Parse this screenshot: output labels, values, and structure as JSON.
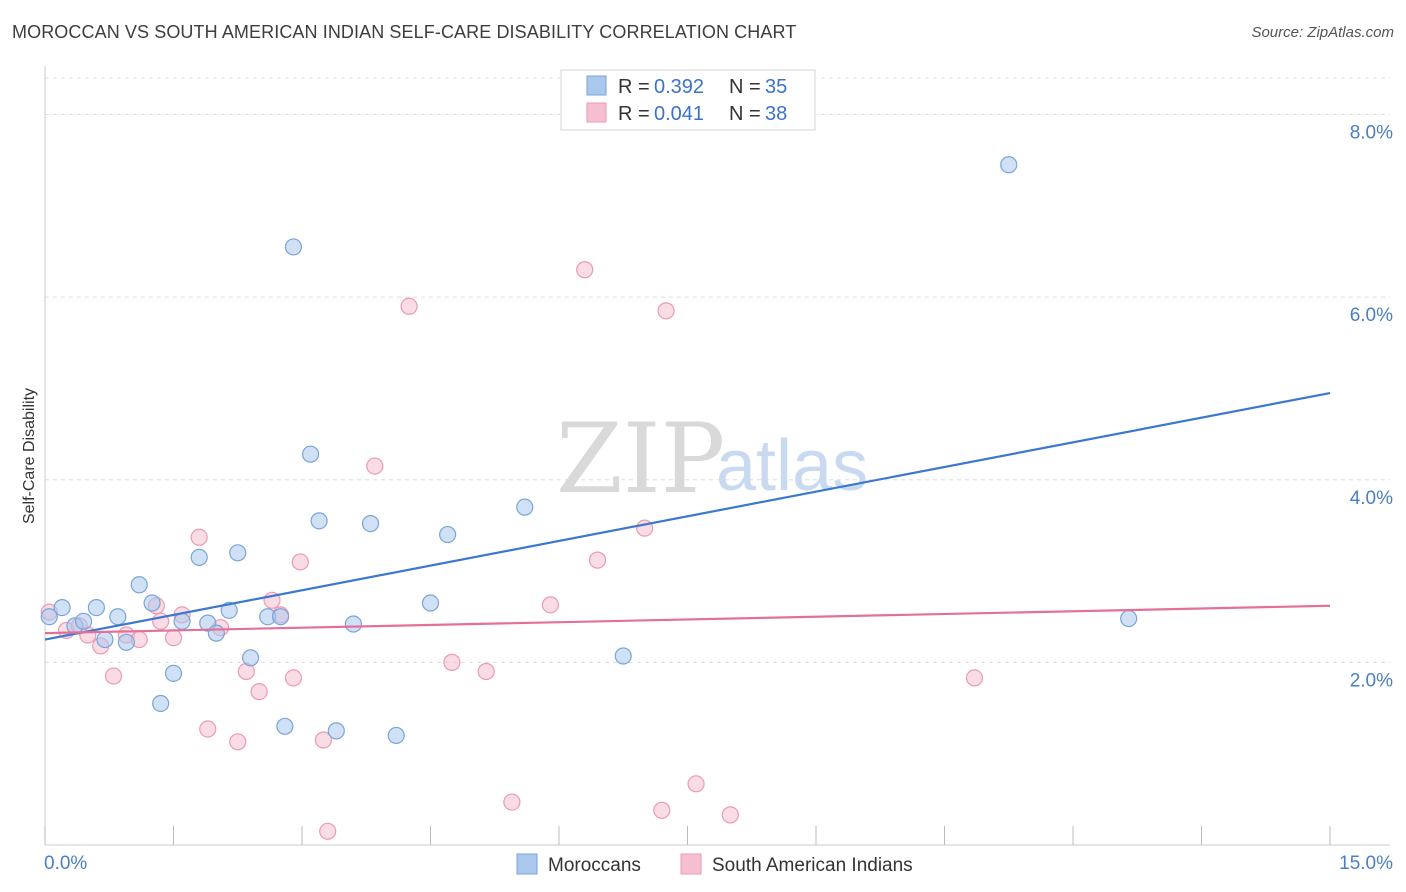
{
  "header": {
    "title": "MOROCCAN VS SOUTH AMERICAN INDIAN SELF-CARE DISABILITY CORRELATION CHART",
    "source": "Source: ZipAtlas.com"
  },
  "watermark": {
    "zip": "ZIP",
    "atlas": "atlas"
  },
  "colors": {
    "blue_fill": "#aac8ee",
    "blue_stroke": "#7aa4d8",
    "blue_line": "#3b78d0",
    "pink_fill": "#f6bfd0",
    "pink_stroke": "#eb9ab5",
    "pink_line": "#e4709a",
    "grid": "#dddddd",
    "axis_text": "#4a7fc4"
  },
  "chart_data": {
    "type": "scatter",
    "title": "MOROCCAN VS SOUTH AMERICAN INDIAN SELF-CARE DISABILITY CORRELATION CHART",
    "xlabel": "",
    "ylabel": "Self-Care Disability",
    "xlim": [
      0,
      15
    ],
    "ylim": [
      0,
      8.4
    ],
    "x_tick_labels": [
      "0.0%",
      "15.0%"
    ],
    "y_ticks": [
      2,
      4,
      6,
      8
    ],
    "y_tick_labels": [
      "2.0%",
      "4.0%",
      "6.0%",
      "8.0%"
    ],
    "grid": true,
    "legend": {
      "position": "top-center",
      "entries": [
        {
          "r_label": "R = ",
          "r_value": "0.392",
          "n_label": "N = ",
          "n_value": "35"
        },
        {
          "r_label": "R = ",
          "r_value": "0.041",
          "n_label": "N = ",
          "n_value": "38"
        }
      ]
    },
    "series": [
      {
        "name": "Moroccans",
        "color": "blue",
        "trend": [
          [
            0,
            2.25
          ],
          [
            15,
            4.95
          ]
        ],
        "points": [
          [
            0.05,
            2.5
          ],
          [
            0.2,
            2.6
          ],
          [
            0.35,
            2.4
          ],
          [
            0.45,
            2.45
          ],
          [
            0.6,
            2.6
          ],
          [
            0.7,
            2.25
          ],
          [
            0.85,
            2.5
          ],
          [
            0.95,
            2.22
          ],
          [
            1.1,
            2.85
          ],
          [
            1.25,
            2.65
          ],
          [
            1.5,
            1.88
          ],
          [
            1.35,
            1.55
          ],
          [
            1.6,
            2.45
          ],
          [
            1.8,
            3.15
          ],
          [
            1.9,
            2.43
          ],
          [
            2.0,
            2.32
          ],
          [
            2.15,
            2.57
          ],
          [
            2.25,
            3.2
          ],
          [
            2.4,
            2.05
          ],
          [
            2.6,
            2.5
          ],
          [
            2.75,
            2.5
          ],
          [
            2.8,
            1.3
          ],
          [
            2.9,
            6.55
          ],
          [
            3.1,
            4.28
          ],
          [
            3.2,
            3.55
          ],
          [
            3.4,
            1.25
          ],
          [
            3.6,
            2.42
          ],
          [
            3.8,
            3.52
          ],
          [
            4.1,
            1.2
          ],
          [
            4.5,
            2.65
          ],
          [
            4.7,
            3.4
          ],
          [
            5.6,
            3.7
          ],
          [
            6.75,
            2.07
          ],
          [
            11.25,
            7.45
          ],
          [
            12.65,
            2.48
          ]
        ]
      },
      {
        "name": "South American Indians",
        "color": "pink",
        "trend": [
          [
            0,
            2.32
          ],
          [
            15,
            2.62
          ]
        ],
        "points": [
          [
            0.05,
            2.55
          ],
          [
            0.25,
            2.35
          ],
          [
            0.4,
            2.4
          ],
          [
            0.5,
            2.3
          ],
          [
            0.65,
            2.18
          ],
          [
            0.8,
            1.85
          ],
          [
            0.95,
            2.3
          ],
          [
            1.1,
            2.25
          ],
          [
            1.3,
            2.62
          ],
          [
            1.35,
            2.45
          ],
          [
            1.5,
            2.27
          ],
          [
            1.6,
            2.52
          ],
          [
            1.8,
            3.37
          ],
          [
            1.9,
            1.27
          ],
          [
            2.05,
            2.38
          ],
          [
            2.25,
            1.13
          ],
          [
            2.35,
            1.9
          ],
          [
            2.5,
            1.68
          ],
          [
            2.65,
            2.68
          ],
          [
            2.75,
            2.52
          ],
          [
            2.9,
            1.83
          ],
          [
            2.98,
            3.1
          ],
          [
            3.25,
            1.15
          ],
          [
            3.3,
            0.15
          ],
          [
            3.85,
            4.15
          ],
          [
            4.25,
            5.9
          ],
          [
            4.75,
            2.0
          ],
          [
            5.15,
            1.9
          ],
          [
            5.45,
            0.47
          ],
          [
            5.9,
            2.63
          ],
          [
            6.3,
            6.3
          ],
          [
            6.45,
            3.12
          ],
          [
            7.0,
            3.47
          ],
          [
            7.2,
            0.38
          ],
          [
            7.25,
            5.85
          ],
          [
            7.6,
            0.67
          ],
          [
            8.0,
            0.33
          ],
          [
            10.85,
            1.83
          ]
        ]
      }
    ]
  }
}
